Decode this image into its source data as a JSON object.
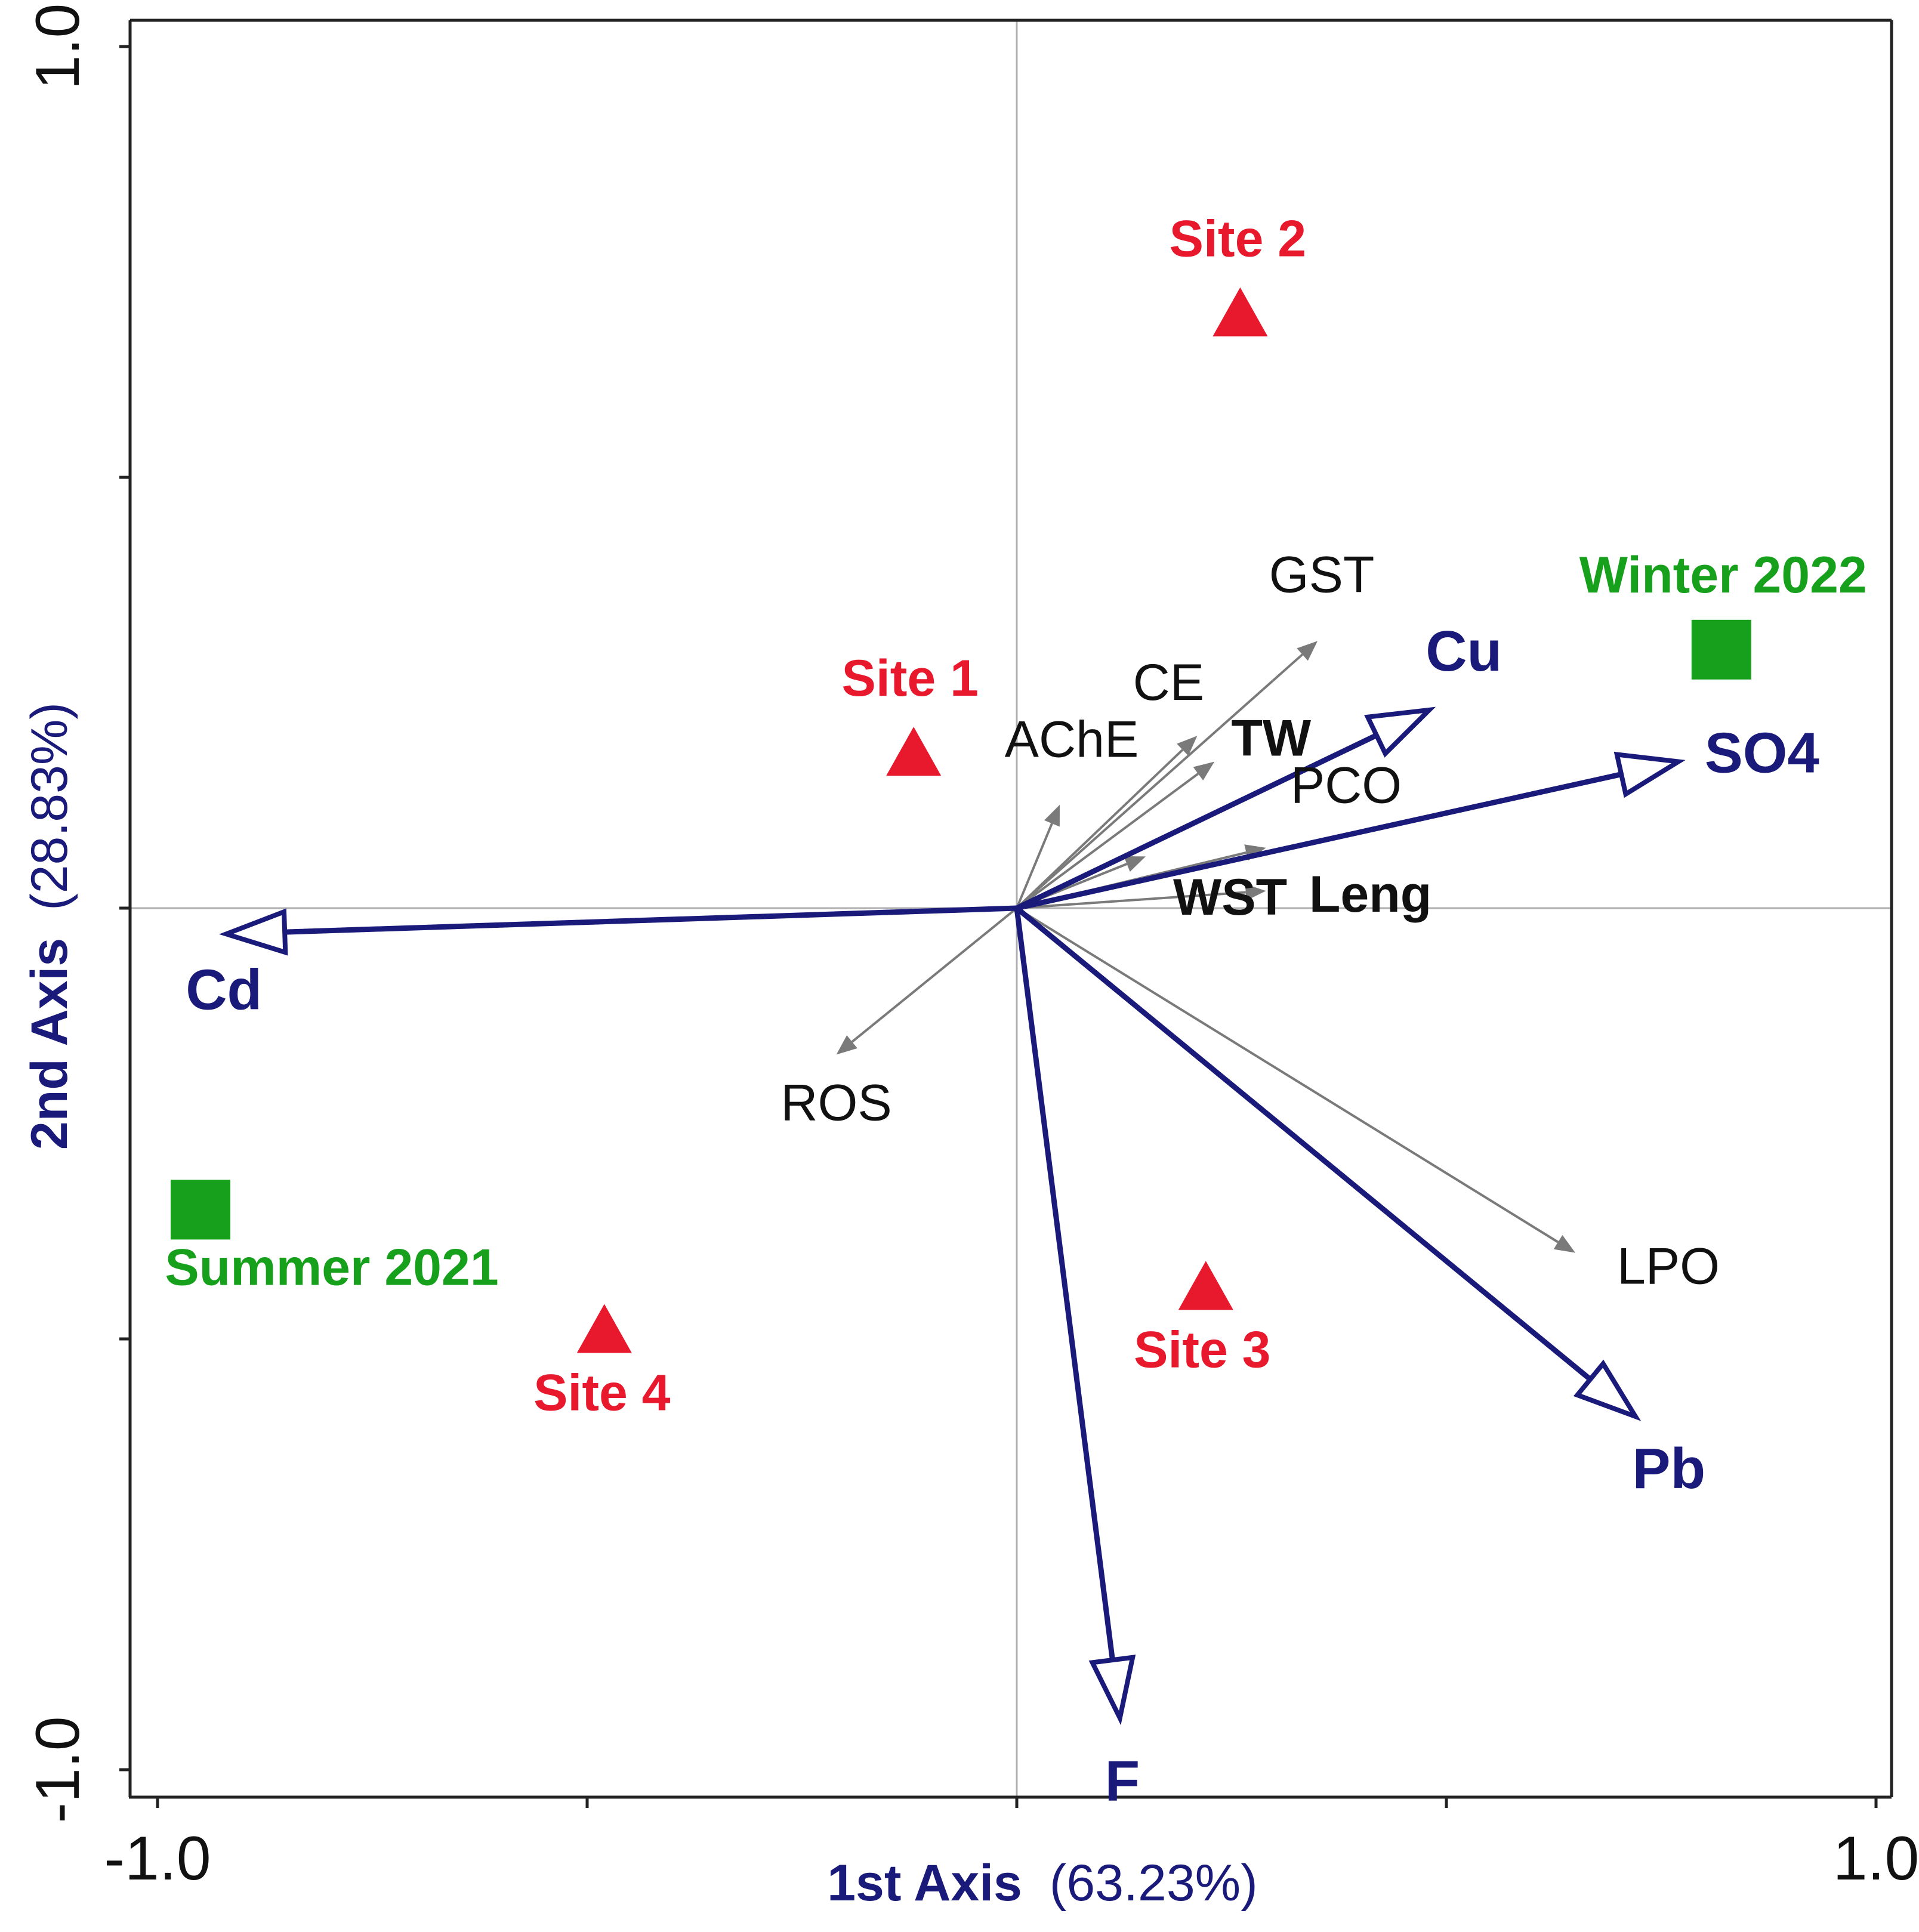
{
  "chart_data": {
    "type": "scatter",
    "subtype": "biplot",
    "title": "",
    "xlabel": {
      "bold": "1st Axis",
      "normal": "(63.23%)"
    },
    "ylabel": {
      "bold": "2nd Axis",
      "normal": "(28.83%)"
    },
    "xlim": [
      -1.0,
      1.0
    ],
    "ylim": [
      -1.0,
      1.0
    ],
    "x_ticks": [
      -1.0,
      -0.5,
      0.0,
      0.5,
      1.0
    ],
    "y_ticks": [
      -1.0,
      -0.5,
      0.0,
      0.5,
      1.0
    ],
    "x_tick_labels": [
      "-1.0",
      "",
      "",
      "",
      "1.0"
    ],
    "y_tick_labels": [
      "-1.0",
      "",
      "",
      "",
      "1.0"
    ],
    "colors": {
      "environment": "#1a1a7a",
      "response": "#7a7a7a",
      "site": "#e8192c",
      "season": "#16a01c",
      "zero_line": "#b0b0b0",
      "axis": "#222222"
    },
    "environmental_vectors": [
      {
        "label": "Cd",
        "x": -0.92,
        "y": -0.03
      },
      {
        "label": "Cu",
        "x": 0.48,
        "y": 0.23
      },
      {
        "label": "SO4",
        "x": 0.77,
        "y": 0.17
      },
      {
        "label": "Pb",
        "x": 0.72,
        "y": -0.59
      },
      {
        "label": "F",
        "x": 0.12,
        "y": -0.94
      }
    ],
    "response_vectors": [
      {
        "label": "GST",
        "x": 0.35,
        "y": 0.31
      },
      {
        "label": "CE",
        "x": 0.21,
        "y": 0.2
      },
      {
        "label": "TW",
        "x": 0.23,
        "y": 0.17
      },
      {
        "label": "AChE",
        "x": 0.05,
        "y": 0.12
      },
      {
        "label": "PCO",
        "x": 0.15,
        "y": 0.06
      },
      {
        "label": "Leng",
        "x": 0.29,
        "y": 0.02
      },
      {
        "label": "WST",
        "x": 0.29,
        "y": 0.07
      },
      {
        "label": "ROS",
        "x": -0.21,
        "y": -0.17
      },
      {
        "label": "LPO",
        "x": 0.65,
        "y": -0.4
      }
    ],
    "sites": [
      {
        "label": "Site 1",
        "x": -0.12,
        "y": 0.18
      },
      {
        "label": "Site 2",
        "x": 0.26,
        "y": 0.69
      },
      {
        "label": "Site 3",
        "x": 0.22,
        "y": -0.44
      },
      {
        "label": "Site 4",
        "x": -0.48,
        "y": -0.49
      }
    ],
    "seasons": [
      {
        "label": "Winter 2022",
        "x": 0.82,
        "y": 0.3
      },
      {
        "label": "Summer 2021",
        "x": -0.95,
        "y": -0.35
      }
    ]
  }
}
